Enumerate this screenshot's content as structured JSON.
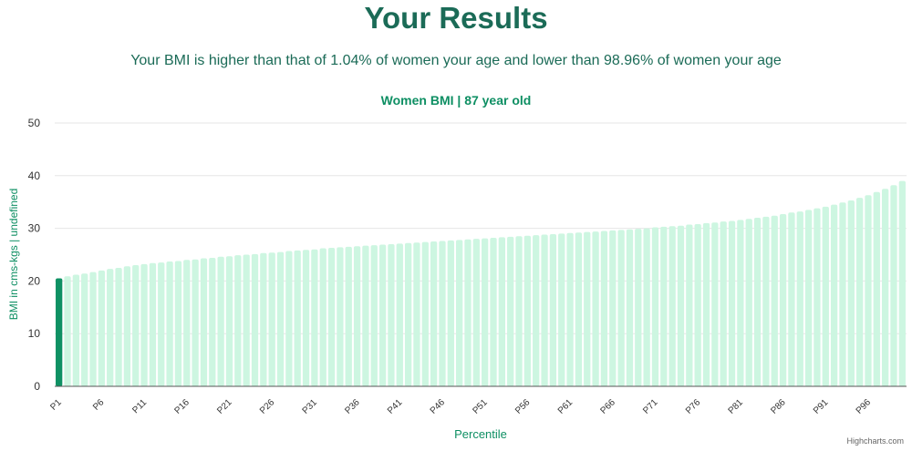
{
  "page": {
    "title": "Your Results",
    "summary": "Your BMI is higher than that of 1.04% of women your age and lower than 98.96% of women your age",
    "credits": "Highcharts.com"
  },
  "colors": {
    "title": "#1b6b57",
    "chart_title": "#0e8f63",
    "bar": "#cdf6e1",
    "highlight_bar": "#0e9163",
    "axis_label": "#0e8f63",
    "grid": "#e6e6e6"
  },
  "chart_data": {
    "type": "bar",
    "title": "Women BMI | 87 year old",
    "xlabel": "Percentile",
    "ylabel": "BMI in cms-kgs | undefined",
    "ylim": [
      0,
      50
    ],
    "yticks": [
      0,
      10,
      20,
      30,
      40,
      50
    ],
    "grid": true,
    "highlight_index": 0,
    "tick_labels": [
      "P1",
      "P6",
      "P11",
      "P16",
      "P21",
      "P26",
      "P31",
      "P36",
      "P41",
      "P46",
      "P51",
      "P56",
      "P61",
      "P66",
      "P71",
      "P76",
      "P81",
      "P86",
      "P91",
      "P96"
    ],
    "categories": [
      "P1",
      "P2",
      "P3",
      "P4",
      "P5",
      "P6",
      "P7",
      "P8",
      "P9",
      "P10",
      "P11",
      "P12",
      "P13",
      "P14",
      "P15",
      "P16",
      "P17",
      "P18",
      "P19",
      "P20",
      "P21",
      "P22",
      "P23",
      "P24",
      "P25",
      "P26",
      "P27",
      "P28",
      "P29",
      "P30",
      "P31",
      "P32",
      "P33",
      "P34",
      "P35",
      "P36",
      "P37",
      "P38",
      "P39",
      "P40",
      "P41",
      "P42",
      "P43",
      "P44",
      "P45",
      "P46",
      "P47",
      "P48",
      "P49",
      "P50",
      "P51",
      "P52",
      "P53",
      "P54",
      "P55",
      "P56",
      "P57",
      "P58",
      "P59",
      "P60",
      "P61",
      "P62",
      "P63",
      "P64",
      "P65",
      "P66",
      "P67",
      "P68",
      "P69",
      "P70",
      "P71",
      "P72",
      "P73",
      "P74",
      "P75",
      "P76",
      "P77",
      "P78",
      "P79",
      "P80",
      "P81",
      "P82",
      "P83",
      "P84",
      "P85",
      "P86",
      "P87",
      "P88",
      "P89",
      "P90",
      "P91",
      "P92",
      "P93",
      "P94",
      "P95",
      "P96",
      "P97",
      "P98",
      "P99",
      "P100"
    ],
    "values": [
      20.5,
      20.9,
      21.2,
      21.4,
      21.7,
      22.0,
      22.3,
      22.5,
      22.8,
      23.0,
      23.2,
      23.4,
      23.5,
      23.7,
      23.8,
      24.0,
      24.1,
      24.3,
      24.4,
      24.6,
      24.7,
      24.9,
      25.0,
      25.1,
      25.3,
      25.4,
      25.5,
      25.7,
      25.8,
      25.9,
      26.0,
      26.2,
      26.3,
      26.4,
      26.5,
      26.6,
      26.7,
      26.8,
      26.9,
      27.0,
      27.1,
      27.2,
      27.3,
      27.4,
      27.5,
      27.6,
      27.7,
      27.8,
      27.9,
      28.0,
      28.1,
      28.2,
      28.3,
      28.4,
      28.5,
      28.6,
      28.7,
      28.8,
      28.9,
      29.0,
      29.1,
      29.2,
      29.3,
      29.4,
      29.5,
      29.6,
      29.7,
      29.8,
      29.9,
      30.0,
      30.2,
      30.3,
      30.4,
      30.5,
      30.7,
      30.8,
      31.0,
      31.1,
      31.3,
      31.4,
      31.6,
      31.8,
      32.0,
      32.2,
      32.4,
      32.7,
      33.0,
      33.2,
      33.5,
      33.8,
      34.1,
      34.5,
      34.9,
      35.3,
      35.8,
      36.3,
      36.9,
      37.5,
      38.2,
      39.0
    ]
  }
}
